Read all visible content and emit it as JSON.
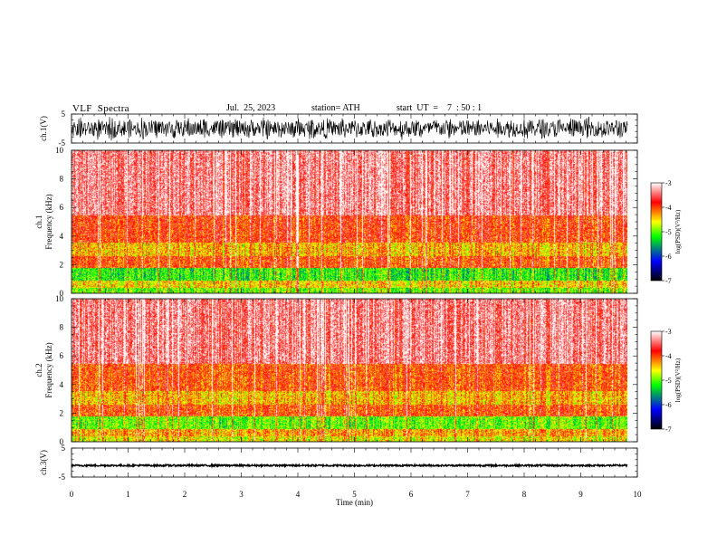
{
  "header": {
    "title": "VLF  Spectra",
    "date": "Jul.  25, 2023",
    "station": "station= ATH",
    "start": "start  UT  =    7  : 50 : 1"
  },
  "chart_data": [
    {
      "type": "line",
      "panel": "ch1-waveform",
      "ylabel": "ch.1(V)",
      "y_ticks": [
        "5",
        "-5"
      ],
      "ylim": [
        -5,
        5
      ],
      "color": "#000000",
      "xlim": [
        0,
        10
      ]
    },
    {
      "type": "heatmap",
      "panel": "ch1-spectrogram",
      "ylabel": "ch.1  Frequency  (kHz)",
      "y_ticks": [
        "0",
        "2",
        "4",
        "6",
        "8",
        "10"
      ],
      "ylim": [
        0,
        10
      ],
      "xlim": [
        0,
        9.83
      ],
      "colorbar": {
        "label": "log(PSD)(V²/Hz)",
        "ticks": [
          "-3",
          "-4",
          "-5",
          "-6",
          "-7"
        ],
        "range": [
          -7,
          -3
        ],
        "colors": [
          "#000000",
          "#0000ff",
          "#00ff00",
          "#ffff00",
          "#ff0000",
          "#ffffff"
        ]
      },
      "bands_khz": [
        {
          "from": 0,
          "to": 0.4,
          "level": -5.0
        },
        {
          "from": 0.4,
          "to": 0.9,
          "level": -4.5
        },
        {
          "from": 0.9,
          "to": 1.8,
          "level": -5.2
        },
        {
          "from": 1.8,
          "to": 2.6,
          "level": -4.0
        },
        {
          "from": 2.6,
          "to": 3.6,
          "level": -4.4
        },
        {
          "from": 3.6,
          "to": 5.5,
          "level": -3.9
        },
        {
          "from": 5.5,
          "to": 10,
          "level": -3.4
        }
      ]
    },
    {
      "type": "heatmap",
      "panel": "ch2-spectrogram",
      "ylabel": "ch.2  Frequency  (kHz)",
      "y_ticks": [
        "0",
        "2",
        "4",
        "6",
        "8",
        "10"
      ],
      "ylim": [
        0,
        10
      ],
      "xlim": [
        0,
        9.83
      ],
      "colorbar": {
        "label": "log(PSD)(V²/Hz)",
        "ticks": [
          "-3",
          "-4",
          "-5",
          "-6",
          "-7"
        ],
        "range": [
          -7,
          -3
        ],
        "colors": [
          "#000000",
          "#0000ff",
          "#00ff00",
          "#ffff00",
          "#ff0000",
          "#ffffff"
        ]
      },
      "bands_khz": [
        {
          "from": 0,
          "to": 0.4,
          "level": -4.6
        },
        {
          "from": 0.4,
          "to": 0.9,
          "level": -4.3
        },
        {
          "from": 0.9,
          "to": 1.8,
          "level": -5.0
        },
        {
          "from": 1.8,
          "to": 2.6,
          "level": -4.0
        },
        {
          "from": 2.6,
          "to": 3.6,
          "level": -4.4
        },
        {
          "from": 3.6,
          "to": 5.5,
          "level": -4.0
        },
        {
          "from": 5.5,
          "to": 10,
          "level": -3.4
        }
      ]
    },
    {
      "type": "line",
      "panel": "ch3-waveform",
      "ylabel": "ch.3(V)",
      "y_ticks": [
        "5",
        "-5"
      ],
      "ylim": [
        -5,
        5
      ],
      "baseline": -1,
      "color": "#000000",
      "xlim": [
        0,
        10
      ]
    }
  ],
  "x_axis": {
    "label": "Time  (min)",
    "ticks": [
      "0",
      "1",
      "2",
      "3",
      "4",
      "5",
      "6",
      "7",
      "8",
      "9",
      "10"
    ],
    "range": [
      0,
      10
    ]
  }
}
